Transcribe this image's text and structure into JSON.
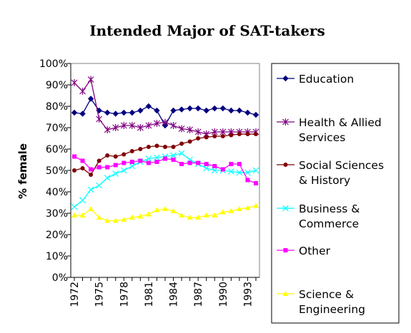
{
  "chart_data": {
    "type": "line",
    "title": "Intended Major of SAT-takers",
    "xlabel": "",
    "ylabel": "% female",
    "ylim": [
      0,
      100
    ],
    "yticks": [
      "0%",
      "10%",
      "20%",
      "30%",
      "40%",
      "50%",
      "60%",
      "70%",
      "80%",
      "90%",
      "100%"
    ],
    "x": [
      1972,
      1973,
      1974,
      1975,
      1976,
      1977,
      1978,
      1979,
      1980,
      1981,
      1982,
      1983,
      1984,
      1985,
      1986,
      1987,
      1988,
      1989,
      1990,
      1991,
      1992,
      1993,
      1994
    ],
    "xtick_labels": [
      "1972",
      "1975",
      "1978",
      "1981",
      "1984",
      "1987",
      "1990",
      "1993"
    ],
    "grid": false,
    "legend_position": "right",
    "series": [
      {
        "name": "Education",
        "color": "#00007f",
        "marker": "diamond",
        "values": [
          77,
          76.5,
          83.5,
          78,
          77,
          76.5,
          77,
          77,
          78,
          80,
          78,
          71,
          78,
          78.5,
          79,
          79,
          78,
          79,
          79,
          78,
          78,
          77,
          76
        ]
      },
      {
        "name": "Health & Allied Services",
        "color": "#800080",
        "marker": "star",
        "values": [
          91,
          87,
          92.5,
          74,
          69,
          70,
          71,
          71,
          70,
          71,
          72,
          72.5,
          71,
          69.5,
          69,
          68,
          67,
          68,
          68,
          68,
          68,
          68,
          68
        ]
      },
      {
        "name": "Social Sciences & History",
        "color": "#800000",
        "marker": "circle",
        "values": [
          50,
          51,
          48,
          54.5,
          57,
          56.5,
          57.5,
          59,
          60,
          61,
          61.5,
          61,
          61,
          62.5,
          63.5,
          65,
          65.5,
          66,
          66,
          66.5,
          67,
          67,
          67
        ]
      },
      {
        "name": "Business & Commerce",
        "color": "#00ffff",
        "marker": "x",
        "values": [
          33,
          36,
          41,
          43,
          46.5,
          48.5,
          50,
          52,
          54,
          55.5,
          56,
          56.5,
          57,
          58,
          55,
          53,
          51,
          50,
          50,
          49.5,
          49,
          49,
          50
        ]
      },
      {
        "name": "Other",
        "color": "#ff00ff",
        "marker": "square",
        "values": [
          56.5,
          54.5,
          50.5,
          51.5,
          51.5,
          52.5,
          53.5,
          54,
          54.5,
          53.5,
          54,
          55.5,
          55,
          53,
          53.5,
          53.5,
          53,
          52,
          50.5,
          53,
          53,
          45.5,
          44
        ]
      },
      {
        "name": "Science & Engineering",
        "color": "#ffff00",
        "marker": "triangle",
        "values": [
          29,
          29,
          32,
          28,
          26.5,
          26.5,
          27,
          28,
          28.5,
          29.5,
          31.5,
          32,
          31,
          29,
          28,
          28,
          29,
          29,
          30.5,
          31,
          32,
          32.5,
          33.5
        ]
      }
    ],
    "legend_lines": [
      [
        "Education"
      ],
      [
        "Health & Allied",
        "Services"
      ],
      [
        "Social Sciences",
        "& History"
      ],
      [
        "Business &",
        "Commerce"
      ],
      [
        "Other"
      ],
      [
        "Science &",
        "Engineering"
      ]
    ]
  }
}
